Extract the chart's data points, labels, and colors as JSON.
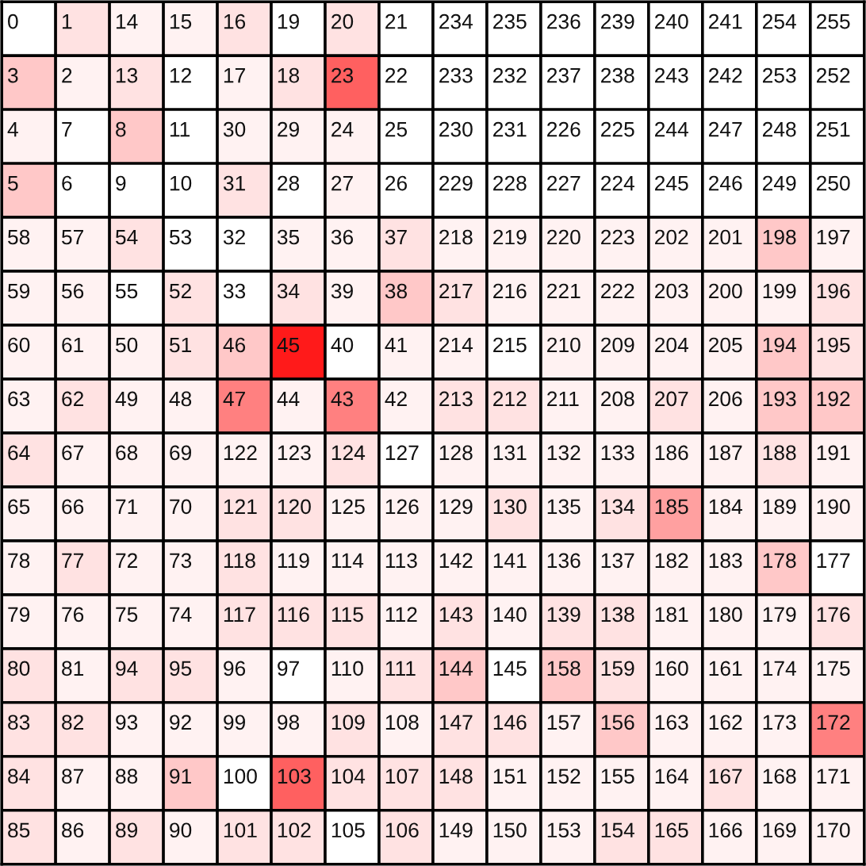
{
  "chart_data": {
    "type": "heatmap",
    "categories": [
      null,
      null,
      null,
      null,
      null,
      null,
      null,
      null,
      null,
      null,
      null,
      null,
      null,
      null,
      null,
      null
    ],
    "y_categories": [
      null,
      null,
      null,
      null,
      null,
      null,
      null,
      null,
      null,
      null,
      null,
      null,
      null,
      null,
      null,
      null
    ],
    "cells": [
      [
        0,
        1,
        14,
        15,
        16,
        19,
        20,
        21,
        234,
        235,
        236,
        239,
        240,
        241,
        254,
        255
      ],
      [
        3,
        2,
        13,
        12,
        17,
        18,
        23,
        22,
        233,
        232,
        237,
        238,
        243,
        242,
        253,
        252
      ],
      [
        4,
        7,
        8,
        11,
        30,
        29,
        24,
        25,
        230,
        231,
        226,
        225,
        244,
        247,
        248,
        251
      ],
      [
        5,
        6,
        9,
        10,
        31,
        28,
        27,
        26,
        229,
        228,
        227,
        224,
        245,
        246,
        249,
        250
      ],
      [
        58,
        57,
        54,
        53,
        32,
        35,
        36,
        37,
        218,
        219,
        220,
        223,
        202,
        201,
        198,
        197
      ],
      [
        59,
        56,
        55,
        52,
        33,
        34,
        39,
        38,
        217,
        216,
        221,
        222,
        203,
        200,
        199,
        196
      ],
      [
        60,
        61,
        50,
        51,
        46,
        45,
        40,
        41,
        214,
        215,
        210,
        209,
        204,
        205,
        194,
        195
      ],
      [
        63,
        62,
        49,
        48,
        47,
        44,
        43,
        42,
        213,
        212,
        211,
        208,
        207,
        206,
        193,
        192
      ],
      [
        64,
        67,
        68,
        69,
        122,
        123,
        124,
        127,
        128,
        131,
        132,
        133,
        186,
        187,
        188,
        191
      ],
      [
        65,
        66,
        71,
        70,
        121,
        120,
        125,
        126,
        129,
        130,
        135,
        134,
        185,
        184,
        189,
        190
      ],
      [
        78,
        77,
        72,
        73,
        118,
        119,
        114,
        113,
        142,
        141,
        136,
        137,
        182,
        183,
        178,
        177
      ],
      [
        79,
        76,
        75,
        74,
        117,
        116,
        115,
        112,
        143,
        140,
        139,
        138,
        181,
        180,
        179,
        176
      ],
      [
        80,
        81,
        94,
        95,
        96,
        97,
        110,
        111,
        144,
        145,
        158,
        159,
        160,
        161,
        174,
        175
      ],
      [
        83,
        82,
        93,
        92,
        99,
        98,
        109,
        108,
        147,
        146,
        157,
        156,
        163,
        162,
        173,
        172
      ],
      [
        84,
        87,
        88,
        91,
        100,
        103,
        104,
        107,
        148,
        151,
        152,
        155,
        164,
        167,
        168,
        171
      ],
      [
        85,
        86,
        89,
        90,
        101,
        102,
        105,
        106,
        149,
        150,
        153,
        154,
        165,
        166,
        169,
        170
      ]
    ],
    "colors": [
      [
        "#ffffff",
        "#ffe2e2",
        "#fff2f2",
        "#fff2f2",
        "#ffe2e2",
        "#ffffff",
        "#ffe2e2",
        "#ffffff",
        "#ffffff",
        "#ffffff",
        "#ffffff",
        "#ffffff",
        "#ffffff",
        "#ffffff",
        "#ffffff",
        "#ffffff"
      ],
      [
        "#ffc8c8",
        "#fff2f2",
        "#ffe2e2",
        "#ffffff",
        "#fff2f2",
        "#ffe2e2",
        "#ff6060",
        "#ffffff",
        "#ffffff",
        "#ffffff",
        "#ffffff",
        "#ffffff",
        "#ffffff",
        "#ffffff",
        "#ffffff",
        "#ffffff"
      ],
      [
        "#fff2f2",
        "#ffffff",
        "#ffc8c8",
        "#ffffff",
        "#fff2f2",
        "#fff2f2",
        "#fff2f2",
        "#ffffff",
        "#ffffff",
        "#ffffff",
        "#ffffff",
        "#ffffff",
        "#ffffff",
        "#ffffff",
        "#ffffff",
        "#ffffff"
      ],
      [
        "#ffc8c8",
        "#ffffff",
        "#ffffff",
        "#ffffff",
        "#ffe2e2",
        "#ffffff",
        "#fff2f2",
        "#ffffff",
        "#ffffff",
        "#ffffff",
        "#ffffff",
        "#ffffff",
        "#ffffff",
        "#ffffff",
        "#ffffff",
        "#ffffff"
      ],
      [
        "#fff2f2",
        "#fff2f2",
        "#ffe2e2",
        "#ffffff",
        "#ffffff",
        "#fff2f2",
        "#fff2f2",
        "#ffe2e2",
        "#fff2f2",
        "#fff2f2",
        "#fff2f2",
        "#fff2f2",
        "#fff2f2",
        "#fff2f2",
        "#ffc8c8",
        "#fff2f2"
      ],
      [
        "#fff2f2",
        "#fff2f2",
        "#ffffff",
        "#ffe2e2",
        "#ffffff",
        "#ffe2e2",
        "#fff2f2",
        "#ffc8c8",
        "#ffe2e2",
        "#fff2f2",
        "#fff2f2",
        "#fff2f2",
        "#fff2f2",
        "#fff2f2",
        "#fff2f2",
        "#ffe2e2"
      ],
      [
        "#fff2f2",
        "#fff2f2",
        "#fff2f2",
        "#ffe2e2",
        "#ffc8c8",
        "#ff1a1a",
        "#ffffff",
        "#fff2f2",
        "#fff2f2",
        "#ffffff",
        "#fff2f2",
        "#fff2f2",
        "#fff2f2",
        "#fff2f2",
        "#ffc8c8",
        "#ffe2e2"
      ],
      [
        "#fff2f2",
        "#ffe2e2",
        "#fff2f2",
        "#fff2f2",
        "#ff8080",
        "#fff2f2",
        "#ff8080",
        "#fff2f2",
        "#ffe2e2",
        "#ffe2e2",
        "#fff2f2",
        "#fff2f2",
        "#ffe2e2",
        "#fff2f2",
        "#ffc8c8",
        "#ffc8c8"
      ],
      [
        "#ffe2e2",
        "#fff2f2",
        "#fff2f2",
        "#fff2f2",
        "#fff2f2",
        "#fff2f2",
        "#ffe2e2",
        "#ffffff",
        "#fff2f2",
        "#fff2f2",
        "#fff2f2",
        "#fff2f2",
        "#fff2f2",
        "#fff2f2",
        "#ffe2e2",
        "#fff2f2"
      ],
      [
        "#fff2f2",
        "#fff2f2",
        "#fff2f2",
        "#fff2f2",
        "#ffe2e2",
        "#ffe2e2",
        "#fff2f2",
        "#fff2f2",
        "#fff2f2",
        "#ffe2e2",
        "#fff2f2",
        "#ffe2e2",
        "#ffa0a0",
        "#fff2f2",
        "#fff2f2",
        "#fff2f2"
      ],
      [
        "#fff2f2",
        "#ffe2e2",
        "#fff2f2",
        "#fff2f2",
        "#ffe2e2",
        "#fff2f2",
        "#fff2f2",
        "#fff2f2",
        "#fff2f2",
        "#fff2f2",
        "#fff2f2",
        "#fff2f2",
        "#fff2f2",
        "#fff2f2",
        "#ffc8c8",
        "#ffffff"
      ],
      [
        "#fff2f2",
        "#fff2f2",
        "#fff2f2",
        "#fff2f2",
        "#ffe2e2",
        "#ffe2e2",
        "#ffe2e2",
        "#fff2f2",
        "#ffe2e2",
        "#fff2f2",
        "#ffe2e2",
        "#ffe2e2",
        "#fff2f2",
        "#fff2f2",
        "#fff2f2",
        "#ffe2e2"
      ],
      [
        "#ffe2e2",
        "#fff2f2",
        "#ffe2e2",
        "#ffe2e2",
        "#fff2f2",
        "#ffffff",
        "#fff2f2",
        "#ffe2e2",
        "#ffc8c8",
        "#ffffff",
        "#ffc8c8",
        "#ffe2e2",
        "#fff2f2",
        "#fff2f2",
        "#fff2f2",
        "#fff2f2"
      ],
      [
        "#ffe2e2",
        "#ffe2e2",
        "#fff2f2",
        "#fff2f2",
        "#fff2f2",
        "#fff2f2",
        "#ffe2e2",
        "#fff2f2",
        "#ffe2e2",
        "#ffe2e2",
        "#fff2f2",
        "#ffc8c8",
        "#fff2f2",
        "#fff2f2",
        "#fff2f2",
        "#ff8080"
      ],
      [
        "#ffe2e2",
        "#fff2f2",
        "#fff2f2",
        "#ffc8c8",
        "#ffffff",
        "#ff6060",
        "#ffe2e2",
        "#ffe2e2",
        "#ffe2e2",
        "#fff2f2",
        "#fff2f2",
        "#fff2f2",
        "#fff2f2",
        "#ffe2e2",
        "#fff2f2",
        "#fff2f2"
      ],
      [
        "#ffe2e2",
        "#fff2f2",
        "#ffe2e2",
        "#fff2f2",
        "#ffe2e2",
        "#ffe2e2",
        "#ffffff",
        "#ffe2e2",
        "#fff2f2",
        "#fff2f2",
        "#fff2f2",
        "#ffe2e2",
        "#ffe2e2",
        "#fff2f2",
        "#fff2f2",
        "#fff2f2"
      ]
    ],
    "data_labels": true
  }
}
